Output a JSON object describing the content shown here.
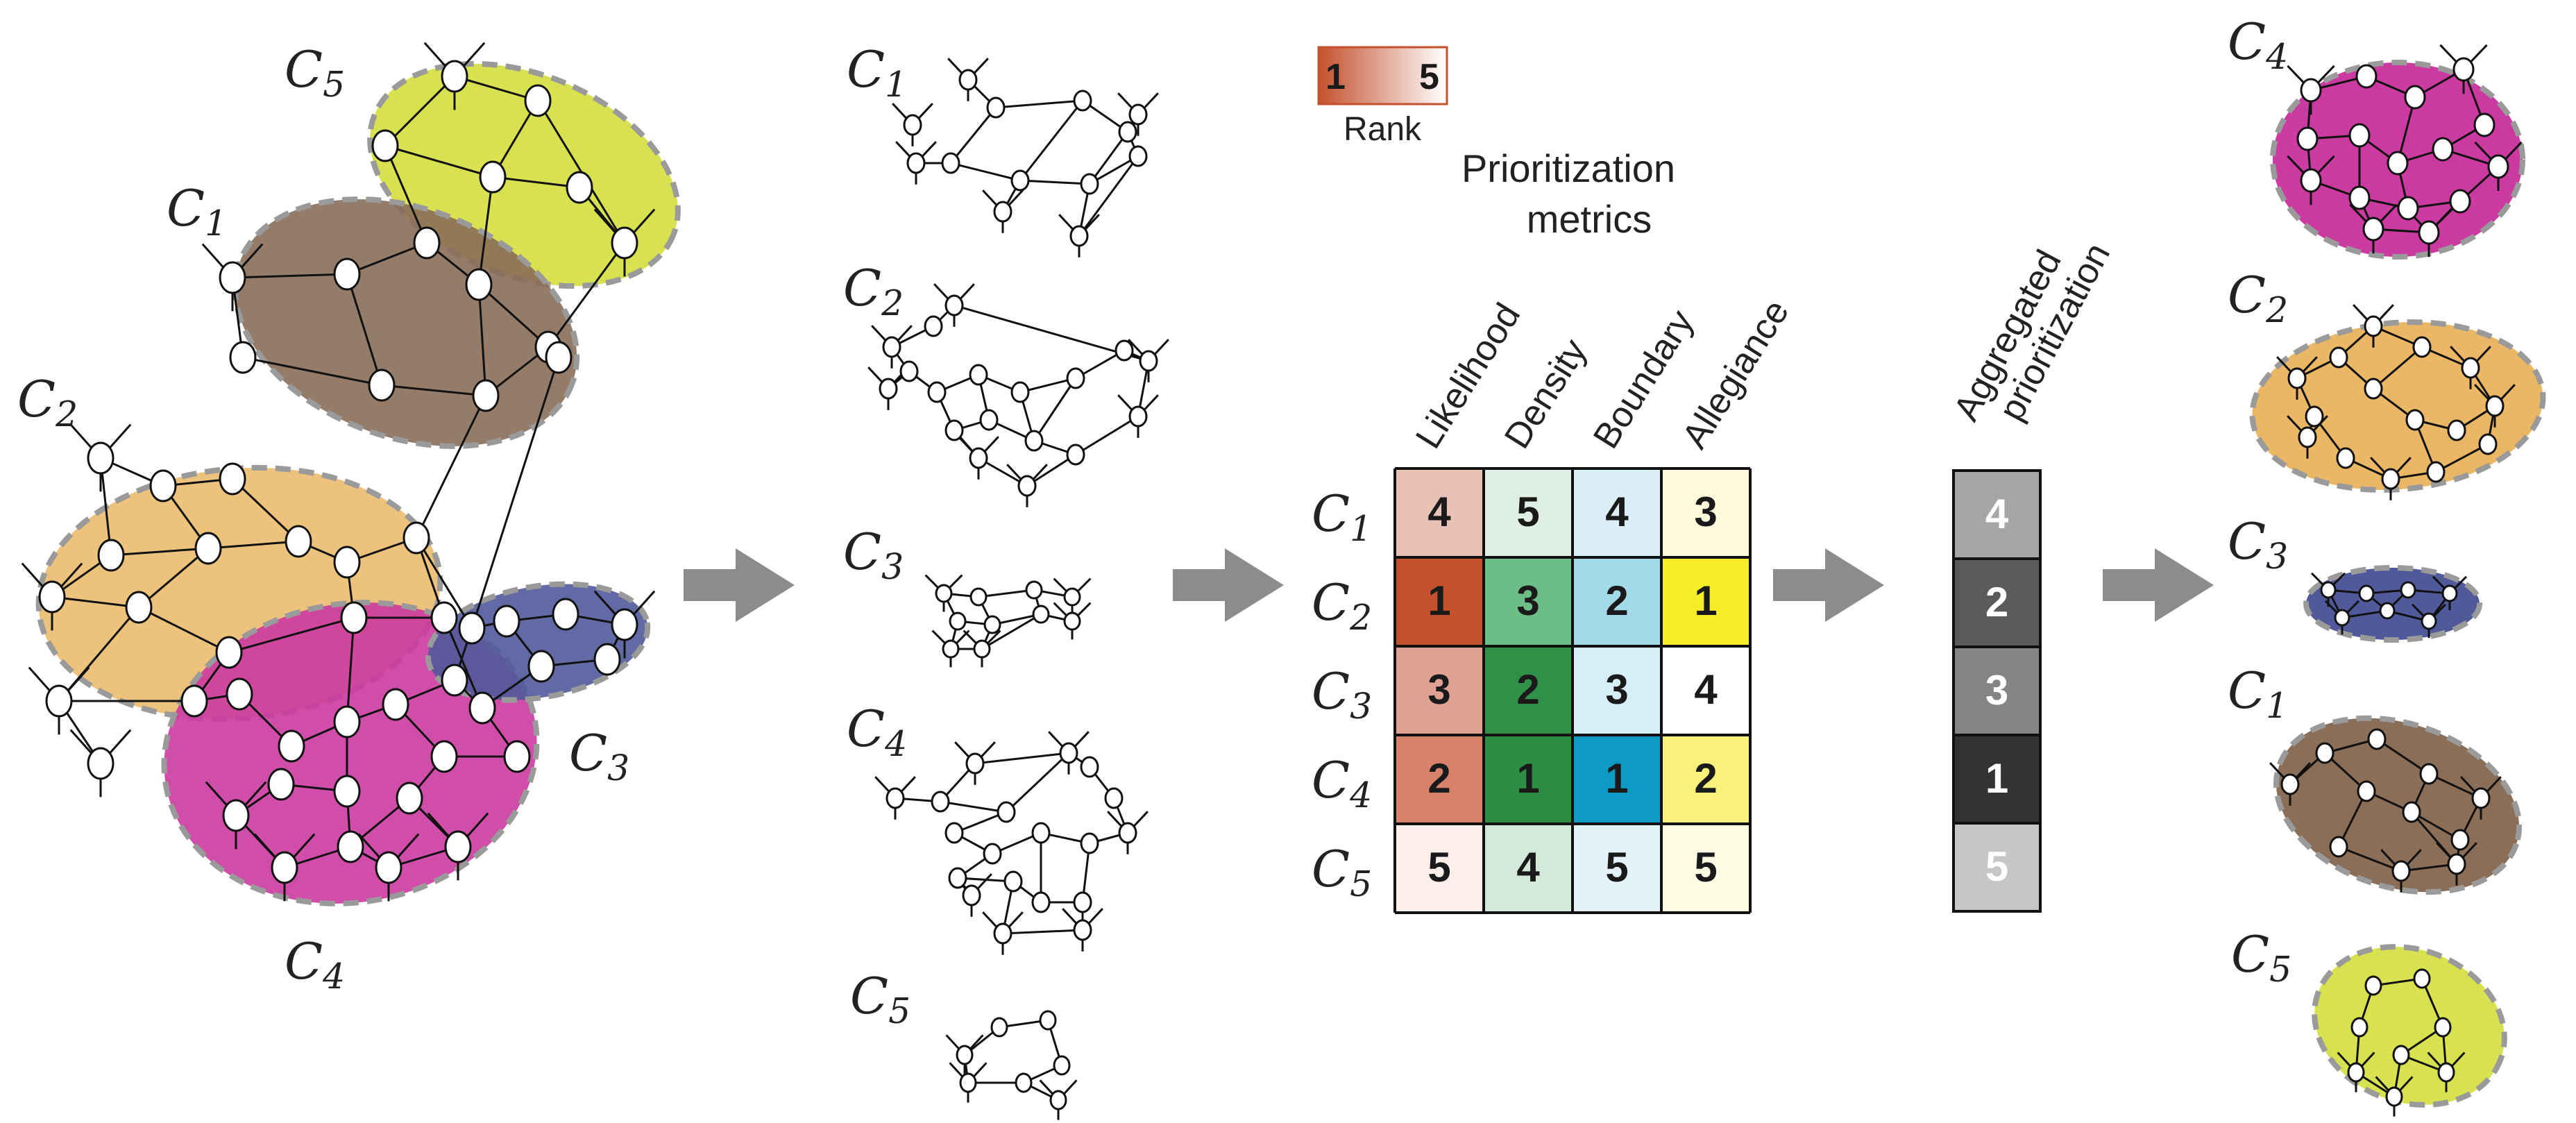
{
  "left_panel": {
    "labels": [
      "C1",
      "C2",
      "C3",
      "C4",
      "C5"
    ]
  },
  "cluster_list": [
    "C1",
    "C2",
    "C3",
    "C4",
    "C5"
  ],
  "legend": {
    "min": "1",
    "max": "5",
    "title": "Rank",
    "gradient_colors": [
      "#c4512e",
      "#ffffff"
    ]
  },
  "metrics_title_line1": "Prioritization",
  "metrics_title_line2": "metrics",
  "columns": [
    "Likelihood",
    "Density",
    "Boundary",
    "Allegiance"
  ],
  "rows": [
    "C1",
    "C2",
    "C3",
    "C4",
    "C5"
  ],
  "ranks": [
    [
      4,
      5,
      4,
      3
    ],
    [
      1,
      3,
      2,
      1
    ],
    [
      3,
      2,
      3,
      4
    ],
    [
      2,
      1,
      1,
      2
    ],
    [
      5,
      4,
      5,
      5
    ]
  ],
  "cell_colors": [
    [
      "#e8c2b6",
      "#e0efe4",
      "#daf0f6",
      "#fffadc"
    ],
    [
      "#c4512e",
      "#6dbd86",
      "#a3d9e8",
      "#f6ed2a"
    ],
    [
      "#dfa192",
      "#2f9147",
      "#d6eef6",
      "#ffffff"
    ],
    [
      "#d7826a",
      "#2d8e43",
      "#0f9ac4",
      "#f9f17c"
    ],
    [
      "#fceee8",
      "#d3eadb",
      "#e3f3f9",
      "#fffbe5"
    ]
  ],
  "aggregated_title_line1": "Aggregated",
  "aggregated_title_line2": "prioritization",
  "aggregated": [
    {
      "rank": "4",
      "color": "#a6a6a6"
    },
    {
      "rank": "2",
      "color": "#5b5b5b"
    },
    {
      "rank": "3",
      "color": "#858585"
    },
    {
      "rank": "1",
      "color": "#333333"
    },
    {
      "rank": "5",
      "color": "#c6c6c6"
    }
  ],
  "output_order": [
    "C4",
    "C2",
    "C3",
    "C1",
    "C5"
  ],
  "cluster_colors": {
    "C1": "#8a6e58",
    "C2": "#eab766",
    "C3": "#505a9a",
    "C4": "#cb3aa0",
    "C5": "#d8e251"
  },
  "arrow_color": "#8c8c8c"
}
